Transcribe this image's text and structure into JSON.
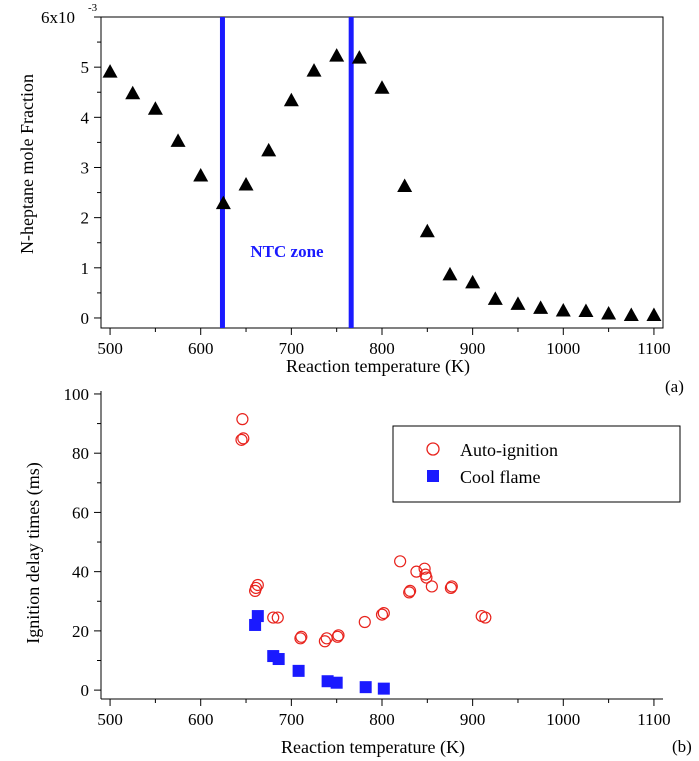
{
  "chart_data": [
    {
      "type": "scatter",
      "panel_label": "(a)",
      "xlabel": "Reaction temperature (K)",
      "ylabel": "N-heptane mole Fraction",
      "xlim": [
        490,
        1110
      ],
      "ylim": [
        -0.0002,
        0.006
      ],
      "x_ticks": [
        "500",
        "600",
        "700",
        "800",
        "900",
        "1000",
        "1100"
      ],
      "y_ticks": [
        "0",
        "1",
        "2",
        "3",
        "4",
        "5",
        "6x10"
      ],
      "y_exponent": "-3",
      "grid": false,
      "annotation": "NTC zone",
      "vertical_lines": [
        {
          "x": 624,
          "color": "#1a1aff"
        },
        {
          "x": 766,
          "color": "#1a1aff"
        }
      ],
      "series": [
        {
          "marker": "triangle",
          "color": "#000000",
          "x": [
            500,
            525,
            550,
            575,
            600,
            625,
            650,
            675,
            700,
            725,
            750,
            775,
            800,
            825,
            850,
            875,
            900,
            925,
            950,
            975,
            1000,
            1025,
            1050,
            1075,
            1100
          ],
          "y": [
            0.0049,
            0.00447,
            0.00416,
            0.00352,
            0.00283,
            0.00228,
            0.00265,
            0.00333,
            0.00433,
            0.00492,
            0.00522,
            0.00518,
            0.00458,
            0.00262,
            0.00172,
            0.00086,
            0.0007,
            0.00037,
            0.00027,
            0.00019,
            0.00014,
            0.00013,
            8e-05,
            5e-05,
            5e-05
          ]
        }
      ]
    },
    {
      "type": "scatter",
      "panel_label": "(b)",
      "xlabel": "Reaction temperature (K)",
      "ylabel": "Ignition delay times (ms)",
      "xlim": [
        490,
        1110
      ],
      "ylim": [
        -3,
        101
      ],
      "x_ticks": [
        "500",
        "600",
        "700",
        "800",
        "900",
        "1000",
        "1100"
      ],
      "y_ticks": [
        "0",
        "20",
        "40",
        "60",
        "80",
        "100"
      ],
      "grid": false,
      "legend_position": "top-right",
      "series": [
        {
          "name": "Auto-ignition",
          "marker": "open-circle",
          "color": "#e8231d",
          "x": [
            645,
            646,
            647,
            660,
            661,
            663,
            680,
            685,
            710,
            711,
            737,
            739,
            751,
            752,
            781,
            800,
            802,
            820,
            830,
            831,
            838,
            847,
            848,
            849,
            855,
            876,
            877,
            910,
            914
          ],
          "y": [
            84.5,
            91.5,
            85.0,
            33.5,
            34.5,
            35.5,
            24.5,
            24.5,
            17.5,
            18.0,
            16.5,
            17.5,
            18.0,
            18.5,
            23.0,
            25.5,
            26.0,
            43.5,
            33.0,
            33.5,
            40.0,
            41.0,
            39.0,
            38.0,
            35.0,
            34.5,
            35.0,
            25.0,
            24.5
          ]
        },
        {
          "name": "Cool flame",
          "marker": "filled-square",
          "color": "#1a1aff",
          "x": [
            660,
            663,
            680,
            686,
            708,
            740,
            750,
            782,
            802
          ],
          "y": [
            22.0,
            25.0,
            11.5,
            10.5,
            6.5,
            3.0,
            2.5,
            1.0,
            0.5
          ]
        }
      ]
    }
  ]
}
